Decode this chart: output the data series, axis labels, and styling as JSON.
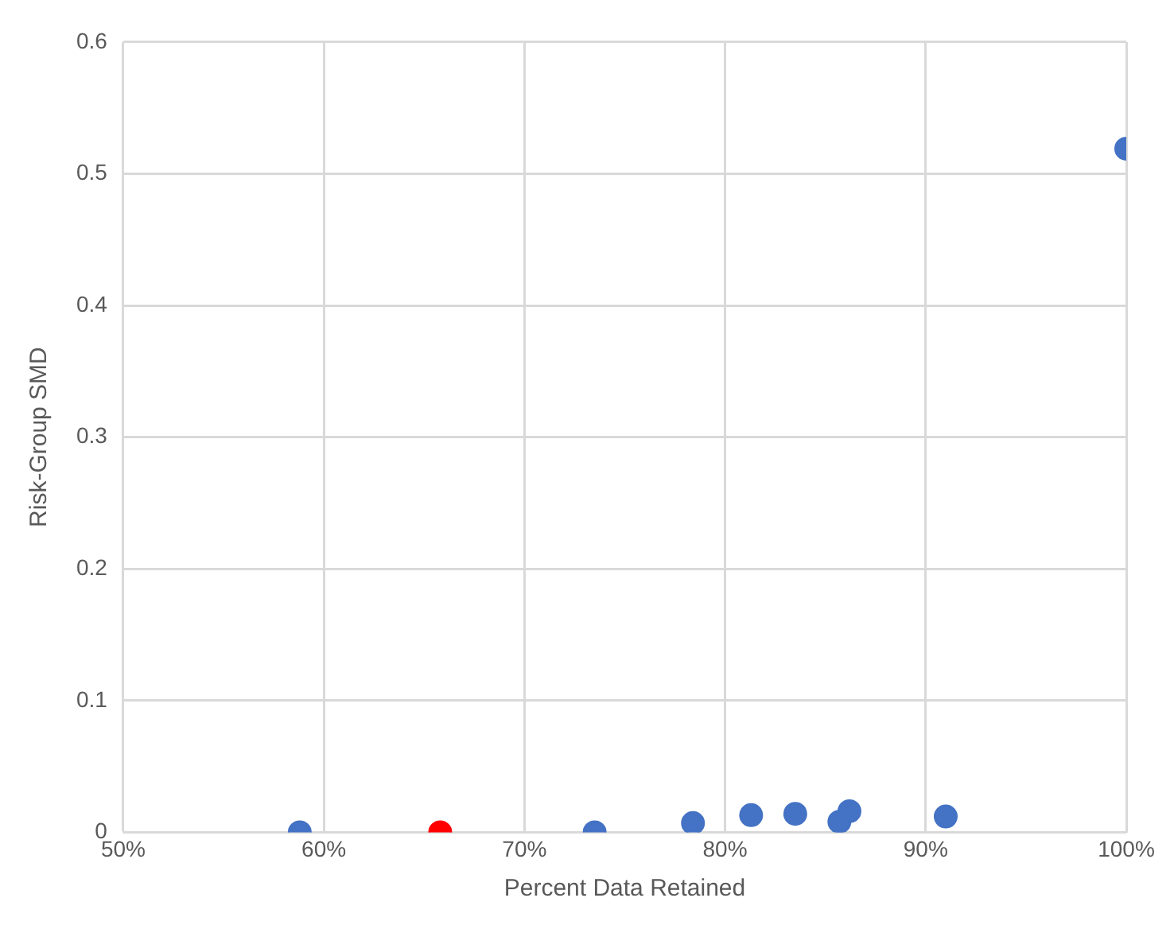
{
  "chart_data": {
    "type": "scatter",
    "xlabel": "Percent Data Retained",
    "ylabel": "Risk-Group SMD",
    "xlim": [
      50,
      100
    ],
    "xticks": [
      {
        "value": 50,
        "label": "50%"
      },
      {
        "value": 60,
        "label": "60%"
      },
      {
        "value": 70,
        "label": "70%"
      },
      {
        "value": 80,
        "label": "80%"
      },
      {
        "value": 90,
        "label": "90%"
      },
      {
        "value": 100,
        "label": "100%"
      }
    ],
    "ylim": [
      0,
      0.6
    ],
    "yticks": [
      0,
      0.1,
      0.2,
      0.3,
      0.4,
      0.5,
      0.6
    ],
    "grid": true,
    "marker": "circle",
    "series": [
      {
        "color": "#4472c4",
        "x": [
          58.8,
          73.5,
          78.4,
          81.3,
          83.5,
          85.7,
          86.2,
          91.0,
          100
        ],
        "values": [
          0,
          0,
          0.007,
          0.013,
          0.014,
          0.008,
          0.016,
          0.012,
          0.519
        ]
      },
      {
        "color": "#ff0000",
        "x": [
          65.8
        ],
        "values": [
          0
        ]
      }
    ]
  }
}
